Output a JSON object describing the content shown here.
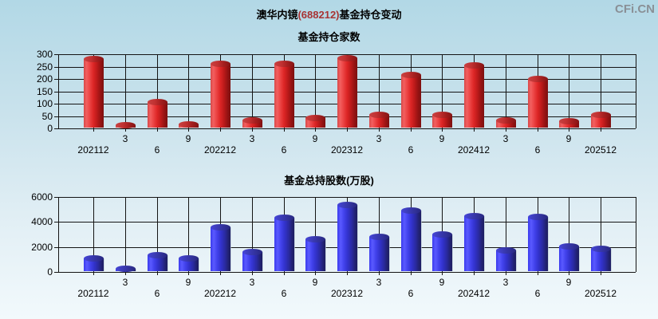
{
  "page": {
    "title_prefix": "澳华内镜",
    "title_code": "(688212)",
    "title_suffix": "基金持仓变动",
    "watermark": "CFi.CN"
  },
  "colors": {
    "background_top": "#b2d8e6",
    "background_bottom": "#f2f9fc",
    "grid_line": "#141414",
    "title_text": "#000000",
    "stock_code_text": "#a83333",
    "watermark_text": "#8a9096",
    "red_bar_highlight": "#f26060",
    "red_bar_dark": "#7c1010",
    "blue_bar_highlight": "#5a5aff",
    "blue_bar_dark": "#1d1d60"
  },
  "chart_data": [
    {
      "type": "bar",
      "title": "基金持仓家数",
      "categories": [
        "202112",
        "3",
        "6",
        "9",
        "202212",
        "3",
        "6",
        "9",
        "202312",
        "3",
        "6",
        "9",
        "202412",
        "3",
        "6",
        "9",
        "202512"
      ],
      "values": [
        278,
        10,
        104,
        13,
        258,
        29,
        258,
        39,
        280,
        51,
        214,
        52,
        251,
        29,
        196,
        25,
        53
      ],
      "xlabel": "",
      "ylabel": "",
      "ylim": [
        0,
        300
      ],
      "ystep": 50,
      "y_ticks": [
        "0",
        "50",
        "100",
        "150",
        "200",
        "250",
        "300"
      ],
      "grid": true,
      "legend": "none",
      "bar_color": "red"
    },
    {
      "type": "bar",
      "title": "基金总持股数(万股)",
      "categories": [
        "202112",
        "3",
        "6",
        "9",
        "202212",
        "3",
        "6",
        "9",
        "202312",
        "3",
        "6",
        "9",
        "202412",
        "3",
        "6",
        "9",
        "202512"
      ],
      "values": [
        1050,
        180,
        1300,
        1000,
        3530,
        1550,
        4300,
        2550,
        5270,
        2720,
        4870,
        2950,
        4380,
        1630,
        4350,
        2000,
        1760
      ],
      "xlabel": "",
      "ylabel": "",
      "ylim": [
        0,
        6000
      ],
      "ystep": 2000,
      "y_ticks": [
        "0",
        "2000",
        "4000",
        "6000"
      ],
      "grid": true,
      "legend": "none",
      "bar_color": "blue"
    }
  ]
}
